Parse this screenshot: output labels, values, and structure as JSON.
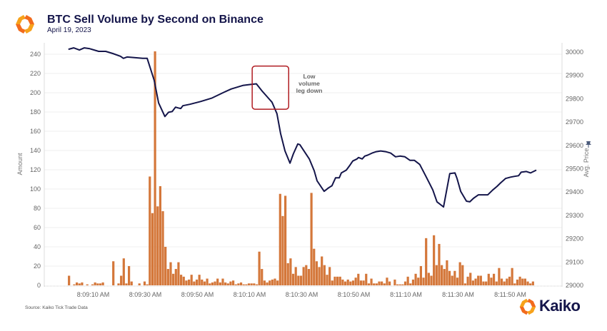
{
  "header": {
    "title": "BTC Sell Volume by Second on Binance",
    "subtitle": "April 19, 2023",
    "logo_icon": "kaiko-logo-icon"
  },
  "footer": {
    "source": "Source: Kaiko Tick Trade Data",
    "brand": "Kaiko"
  },
  "colors": {
    "bar": "#d4773a",
    "line": "#14154a",
    "annotation_box": "#b01c22",
    "brand_orange": "#f5961f"
  },
  "chart_data": {
    "type": "bar+line",
    "title": "BTC Sell Volume by Second on Binance",
    "subtitle": "April 19, 2023",
    "xlabel": "",
    "ylabel": "Amount",
    "y2label": "Avg. Price",
    "y2_icon": "pin-icon",
    "ylim": [
      0,
      240
    ],
    "y2lim": [
      29000,
      30000
    ],
    "yticks": [
      "0",
      "20",
      "40",
      "60",
      "80",
      "100",
      "120",
      "140",
      "160",
      "180",
      "200",
      "220",
      "240"
    ],
    "y2ticks": [
      "29000",
      "29100",
      "29200",
      "29300",
      "29400",
      "29500",
      "29600",
      "29700",
      "29800",
      "29900",
      "30000"
    ],
    "xticks": [
      {
        "t": 10,
        "label": "8:09:10 AM"
      },
      {
        "t": 30,
        "label": "8:09:30 AM"
      },
      {
        "t": 50,
        "label": "8:09:50 AM"
      },
      {
        "t": 70,
        "label": "8:10:10 AM"
      },
      {
        "t": 90,
        "label": "8:10:30 AM"
      },
      {
        "t": 110,
        "label": "8:10:50 AM"
      },
      {
        "t": 130,
        "label": "8:11:10 AM"
      },
      {
        "t": 150,
        "label": "8:11:30 AM"
      },
      {
        "t": 170,
        "label": "8:11:50 AM"
      }
    ],
    "x_unit": "seconds after 8:09:00 AM",
    "grid": true,
    "series": [
      {
        "name": "Amount",
        "type": "bar",
        "axis": "left",
        "start_t": 1,
        "values": [
          10,
          0,
          1,
          3,
          2,
          3,
          0,
          1,
          0,
          1,
          3,
          2,
          2,
          3,
          0,
          0,
          0,
          25,
          0,
          2,
          10,
          28,
          2,
          20,
          4,
          0,
          0,
          2,
          0,
          4,
          1,
          113,
          75,
          243,
          82,
          103,
          77,
          40,
          17,
          24,
          12,
          17,
          24,
          11,
          9,
          5,
          6,
          11,
          4,
          6,
          11,
          6,
          4,
          7,
          2,
          3,
          4,
          7,
          3,
          7,
          3,
          2,
          4,
          5,
          1,
          2,
          3,
          1,
          1,
          2,
          2,
          2,
          1,
          35,
          17,
          5,
          3,
          5,
          6,
          7,
          5,
          95,
          72,
          93,
          23,
          28,
          12,
          19,
          10,
          10,
          19,
          21,
          17,
          96,
          38,
          25,
          19,
          30,
          21,
          11,
          19,
          5,
          9,
          9,
          9,
          6,
          4,
          6,
          4,
          5,
          8,
          12,
          5,
          5,
          12,
          2,
          7,
          2,
          2,
          4,
          4,
          2,
          8,
          4,
          0,
          6,
          1,
          1,
          1,
          4,
          9,
          2,
          6,
          12,
          8,
          20,
          8,
          49,
          13,
          10,
          52,
          21,
          43,
          21,
          17,
          26,
          15,
          10,
          15,
          8,
          24,
          21,
          2,
          9,
          13,
          5,
          7,
          10,
          10,
          4,
          4,
          12,
          8,
          12,
          4,
          18,
          7,
          4,
          7,
          9,
          18,
          2,
          6,
          9,
          7,
          7,
          4,
          2,
          4
        ]
      },
      {
        "name": "Avg. Price",
        "type": "line",
        "axis": "right",
        "points": [
          [
            0.5,
            30012
          ],
          [
            2.5,
            30018
          ],
          [
            4.7,
            30009
          ],
          [
            6.6,
            30018
          ],
          [
            8.5,
            30015
          ],
          [
            12.1,
            30003
          ],
          [
            14.8,
            30003
          ],
          [
            17.5,
            29994
          ],
          [
            20.5,
            29982
          ],
          [
            21.6,
            29973
          ],
          [
            23,
            29979
          ],
          [
            25.8,
            29976
          ],
          [
            29,
            29973
          ],
          [
            30.7,
            29973
          ],
          [
            33.4,
            29879
          ],
          [
            35.1,
            29782
          ],
          [
            37.5,
            29724
          ],
          [
            38.9,
            29742
          ],
          [
            40.3,
            29745
          ],
          [
            41.6,
            29764
          ],
          [
            42.5,
            29761
          ],
          [
            43.6,
            29758
          ],
          [
            44.4,
            29770
          ],
          [
            47.1,
            29776
          ],
          [
            51.2,
            29788
          ],
          [
            55.6,
            29803
          ],
          [
            60,
            29827
          ],
          [
            63,
            29842
          ],
          [
            67.4,
            29857
          ],
          [
            70.1,
            29861
          ],
          [
            72.6,
            29864
          ],
          [
            74.8,
            29833
          ],
          [
            76.7,
            29809
          ],
          [
            78.6,
            29785
          ],
          [
            80.5,
            29736
          ],
          [
            81.9,
            29651
          ],
          [
            83.6,
            29576
          ],
          [
            85.5,
            29524
          ],
          [
            86.8,
            29564
          ],
          [
            88.5,
            29606
          ],
          [
            89.3,
            29603
          ],
          [
            92.9,
            29542
          ],
          [
            94.8,
            29491
          ],
          [
            95.9,
            29448
          ],
          [
            98.6,
            29403
          ],
          [
            100.3,
            29418
          ],
          [
            101.6,
            29427
          ],
          [
            103,
            29461
          ],
          [
            104.4,
            29461
          ],
          [
            105.2,
            29482
          ],
          [
            107.1,
            29494
          ],
          [
            108.5,
            29515
          ],
          [
            109.6,
            29533
          ],
          [
            111.2,
            29542
          ],
          [
            111.8,
            29548
          ],
          [
            113.2,
            29542
          ],
          [
            114.2,
            29554
          ],
          [
            115.3,
            29558
          ],
          [
            117,
            29567
          ],
          [
            118.6,
            29573
          ],
          [
            120.3,
            29576
          ],
          [
            122.2,
            29573
          ],
          [
            124.1,
            29567
          ],
          [
            126,
            29551
          ],
          [
            127.7,
            29554
          ],
          [
            129.6,
            29551
          ],
          [
            131.5,
            29536
          ],
          [
            133.2,
            29536
          ],
          [
            135.3,
            29518
          ],
          [
            137.8,
            29464
          ],
          [
            140.3,
            29409
          ],
          [
            141.9,
            29358
          ],
          [
            144.4,
            29336
          ],
          [
            146.8,
            29479
          ],
          [
            148.8,
            29482
          ],
          [
            149.6,
            29458
          ],
          [
            151,
            29403
          ],
          [
            153.2,
            29361
          ],
          [
            154.5,
            29358
          ],
          [
            155.9,
            29373
          ],
          [
            157.8,
            29388
          ],
          [
            159.7,
            29388
          ],
          [
            161.4,
            29388
          ],
          [
            163.3,
            29409
          ],
          [
            164.9,
            29424
          ],
          [
            166.3,
            29439
          ],
          [
            168.2,
            29458
          ],
          [
            170.1,
            29464
          ],
          [
            171.5,
            29467
          ],
          [
            173.2,
            29470
          ],
          [
            174.2,
            29485
          ],
          [
            176.2,
            29488
          ],
          [
            177.8,
            29482
          ],
          [
            180,
            29494
          ]
        ]
      }
    ],
    "annotation": {
      "text_lines": [
        "Low",
        "volume",
        "leg down"
      ],
      "box_t": [
        71,
        85
      ],
      "box_price": [
        29755,
        29940
      ]
    }
  }
}
